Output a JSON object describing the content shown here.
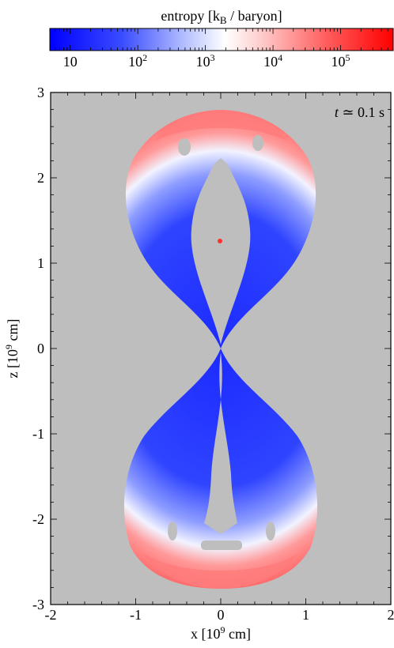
{
  "colorbar": {
    "title": "entropy [k",
    "title_sub": "B",
    "title_tail": " / baryon]",
    "scale": "log",
    "range": [
      5,
      600000
    ],
    "colors": {
      "low": "#0000ff",
      "mid": "#ffffff",
      "high": "#ff0000"
    },
    "mid_value": 1500,
    "ticks": [
      {
        "value": 10,
        "base": "10",
        "exp": ""
      },
      {
        "value": 100,
        "base": "10",
        "exp": "2"
      },
      {
        "value": 1000,
        "base": "10",
        "exp": "3"
      },
      {
        "value": 10000,
        "base": "10",
        "exp": "4"
      },
      {
        "value": 100000,
        "base": "10",
        "exp": "5"
      }
    ]
  },
  "chart_data": {
    "type": "heatmap",
    "annotation": {
      "prefix": "t",
      "suffix": " ≃ 0.1 s"
    },
    "xlabel": {
      "pre": "x [10",
      "exp": "9",
      "post": " cm]"
    },
    "ylabel": {
      "pre": "z [10",
      "exp": "9",
      "post": " cm]"
    },
    "xlim": [
      -2,
      2
    ],
    "ylim": [
      -3,
      3
    ],
    "xticks": [
      {
        "value": -2,
        "label": "-2"
      },
      {
        "value": -1,
        "label": "-1"
      },
      {
        "value": 0,
        "label": "0"
      },
      {
        "value": 1,
        "label": "1"
      },
      {
        "value": 2,
        "label": "2"
      }
    ],
    "yticks": [
      {
        "value": 3,
        "label": "3"
      },
      {
        "value": 2,
        "label": "2"
      },
      {
        "value": 1,
        "label": "1"
      },
      {
        "value": 0,
        "label": "0"
      },
      {
        "value": -1,
        "label": "-1"
      },
      {
        "value": -2,
        "label": "-2"
      },
      {
        "value": -3,
        "label": "-3"
      }
    ],
    "background_color": "#bebebe",
    "description": "bipolar outflow lobes, low entropy (blue) interior, high entropy (red) outer shell"
  }
}
